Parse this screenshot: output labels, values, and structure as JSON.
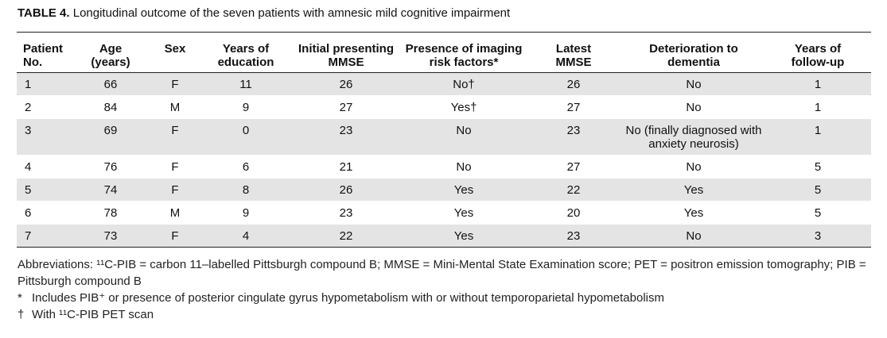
{
  "caption": {
    "label": "TABLE 4.",
    "title": "Longitudinal outcome of the seven patients with amnesic mild cognitive impairment"
  },
  "table": {
    "headers": [
      [
        "Patient",
        "No."
      ],
      [
        "Age",
        "(years)"
      ],
      [
        "Sex",
        ""
      ],
      [
        "Years of",
        "education"
      ],
      [
        "Initial presenting",
        "MMSE"
      ],
      [
        "Presence of imaging",
        "risk factors*"
      ],
      [
        "Latest",
        "MMSE"
      ],
      [
        "Deterioration to",
        "dementia"
      ],
      [
        "Years of",
        "follow-up"
      ]
    ],
    "rows": [
      [
        "1",
        "66",
        "F",
        "11",
        "26",
        "No†",
        "26",
        [
          "No"
        ],
        "1"
      ],
      [
        "2",
        "84",
        "M",
        "9",
        "27",
        "Yes†",
        "27",
        [
          "No"
        ],
        "1"
      ],
      [
        "3",
        "69",
        "F",
        "0",
        "23",
        "No",
        "23",
        [
          "No (finally diagnosed with",
          "anxiety neurosis)"
        ],
        "1"
      ],
      [
        "4",
        "76",
        "F",
        "6",
        "21",
        "No",
        "27",
        [
          "No"
        ],
        "5"
      ],
      [
        "5",
        "74",
        "F",
        "8",
        "26",
        "Yes",
        "22",
        [
          "Yes"
        ],
        "5"
      ],
      [
        "6",
        "78",
        "M",
        "9",
        "23",
        "Yes",
        "20",
        [
          "Yes"
        ],
        "5"
      ],
      [
        "7",
        "73",
        "F",
        "4",
        "22",
        "Yes",
        "23",
        [
          "No"
        ],
        "3"
      ]
    ]
  },
  "footnotes": {
    "abbreviations": "Abbreviations: ¹¹C-PIB = carbon 11–labelled Pittsburgh compound B; MMSE = Mini-Mental State Examination score; PET = positron emission tomography; PIB = Pittsburgh compound B",
    "notes": [
      {
        "symbol": "*",
        "text": "Includes PIB⁺ or presence of posterior cingulate gyrus hypometabolism with or without temporoparietal hypometabolism"
      },
      {
        "symbol": "†",
        "text": "With ¹¹C-PIB PET scan"
      }
    ]
  },
  "colors": {
    "row_shade": "#e4e4e4",
    "rule": "#222222"
  }
}
